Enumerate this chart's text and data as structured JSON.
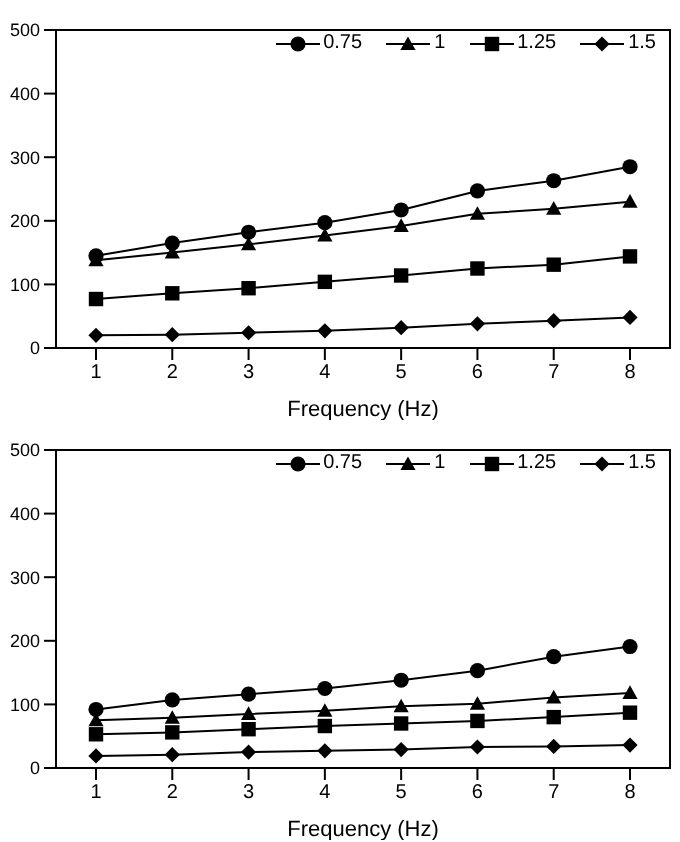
{
  "chart_data": [
    {
      "type": "line",
      "xlabel": "Frequency (Hz)",
      "categories": [
        "1",
        "2",
        "3",
        "4",
        "5",
        "6",
        "7",
        "8"
      ],
      "ylim": [
        0,
        500
      ],
      "yticks": [
        0,
        100,
        200,
        300,
        400,
        500
      ],
      "legend": "top right",
      "series": [
        {
          "name": "0.75",
          "color": "#000000",
          "marker": "circle",
          "values": [
            145,
            165,
            182,
            197,
            217,
            247,
            263,
            285
          ]
        },
        {
          "name": "1",
          "color": "#000000",
          "marker": "triangle",
          "values": [
            138,
            150,
            163,
            177,
            192,
            211,
            219,
            230
          ]
        },
        {
          "name": "1.25",
          "color": "#000000",
          "marker": "square",
          "values": [
            77,
            86,
            94,
            104,
            114,
            125,
            131,
            144
          ]
        },
        {
          "name": "1.5",
          "color": "#000000",
          "marker": "diamond",
          "values": [
            20,
            21,
            24,
            27,
            32,
            38,
            43,
            48
          ]
        }
      ]
    },
    {
      "type": "line",
      "xlabel": "Frequency (Hz)",
      "categories": [
        "1",
        "2",
        "3",
        "4",
        "5",
        "6",
        "7",
        "8"
      ],
      "ylim": [
        0,
        500
      ],
      "yticks": [
        0,
        100,
        200,
        300,
        400,
        500
      ],
      "legend": "top right",
      "series": [
        {
          "name": "0.75",
          "color": "#000000",
          "marker": "circle",
          "values": [
            92,
            107,
            116,
            125,
            138,
            153,
            175,
            191
          ]
        },
        {
          "name": "1",
          "color": "#000000",
          "marker": "triangle",
          "values": [
            75,
            79,
            85,
            90,
            97,
            101,
            111,
            118
          ]
        },
        {
          "name": "1.25",
          "color": "#000000",
          "marker": "square",
          "values": [
            53,
            56,
            61,
            66,
            70,
            74,
            80,
            87
          ]
        },
        {
          "name": "1.5",
          "color": "#000000",
          "marker": "diamond",
          "values": [
            19,
            21,
            25,
            27,
            29,
            33,
            34,
            36
          ]
        }
      ]
    }
  ]
}
